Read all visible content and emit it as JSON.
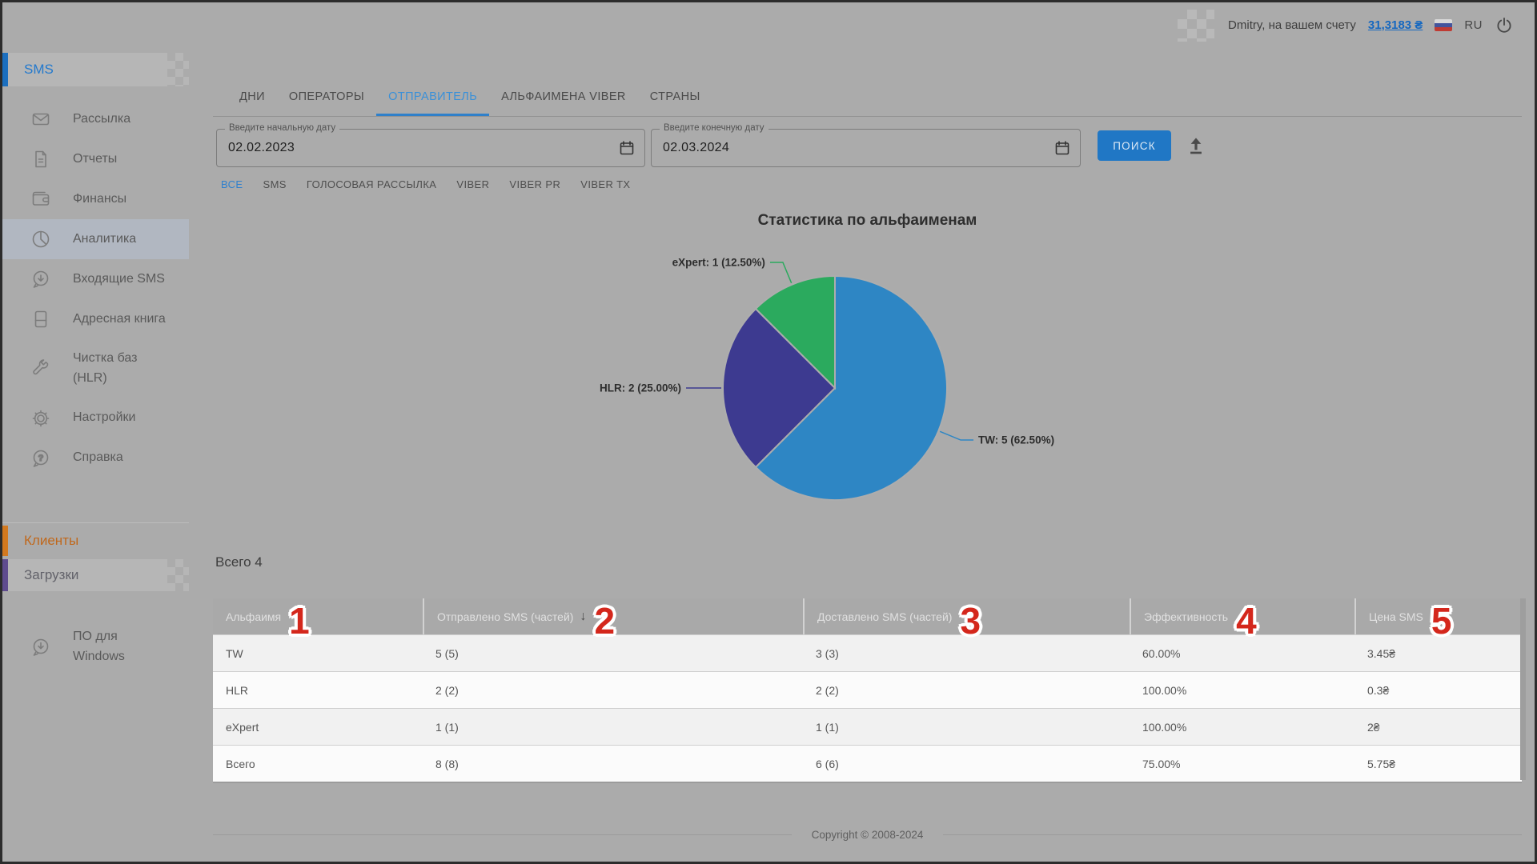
{
  "topbar": {
    "user_text": "Dmitry, на вашем счету",
    "balance": "31,3183 ₴",
    "language": "RU"
  },
  "sidebar": {
    "sms_section": "SMS",
    "items": [
      {
        "icon": "mail-icon",
        "label": "Рассылка"
      },
      {
        "icon": "report-icon",
        "label": "Отчеты"
      },
      {
        "icon": "wallet-icon",
        "label": "Финансы"
      },
      {
        "icon": "analytics-icon",
        "label": "Аналитика",
        "selected": true
      },
      {
        "icon": "inbox-sms-icon",
        "label": "Входящие SMS"
      },
      {
        "icon": "address-book-icon",
        "label": "Адресная книга"
      },
      {
        "icon": "wrench-icon",
        "label": "Чистка баз (HLR)"
      },
      {
        "icon": "gear-icon",
        "label": "Настройки"
      },
      {
        "icon": "help-icon",
        "label": "Справка"
      }
    ],
    "clients_section": "Клиенты",
    "downloads_section": "Загрузки",
    "windows_item": {
      "icon": "download-icon",
      "label": "ПО для Windows"
    }
  },
  "tabs": {
    "items": [
      {
        "label": "ДНИ"
      },
      {
        "label": "ОПЕРАТОРЫ"
      },
      {
        "label": "ОТПРАВИТЕЛЬ"
      },
      {
        "label": "АЛЬФАИМЕНА VIBER"
      },
      {
        "label": "СТРАНЫ"
      }
    ],
    "active_index": 2
  },
  "filters": {
    "start_date": {
      "label": "Введите начальную дату",
      "value": "02.02.2023"
    },
    "end_date": {
      "label": "Введите конечную дату",
      "value": "02.03.2024"
    },
    "search_button": "ПОИСК"
  },
  "type_filters": {
    "items": [
      "ВСЕ",
      "SMS",
      "ГОЛОСОВАЯ РАССЫЛКА",
      "VIBER",
      "VIBER PR",
      "VIBER TX"
    ],
    "active_index": 0
  },
  "chart_data": {
    "type": "pie",
    "title": "Статистика по альфаименам",
    "series": [
      {
        "name": "TW",
        "value": 5,
        "percent": "62.50%",
        "color": "#2e86c4"
      },
      {
        "name": "HLR",
        "value": 2,
        "percent": "25.00%",
        "color": "#3d3a90"
      },
      {
        "name": "eXpert",
        "value": 1,
        "percent": "12.50%",
        "color": "#2baa5e"
      }
    ],
    "label_format": "{name}: {value} ({percent})",
    "start_angle_deg": 0,
    "direction": "clockwise",
    "legend": "off"
  },
  "table": {
    "summary": "Всего 4",
    "columns": [
      {
        "label": "Альфаимя",
        "marker": "1"
      },
      {
        "label": "Отправлено SMS (частей)",
        "marker": "2",
        "sorted": "desc"
      },
      {
        "label": "Доставлено SMS (частей)",
        "marker": "3"
      },
      {
        "label": "Эффективность",
        "marker": "4"
      },
      {
        "label": "Цена SMS",
        "marker": "5"
      }
    ],
    "rows": [
      [
        "TW",
        "5 (5)",
        "3 (3)",
        "60.00%",
        "3.45₴"
      ],
      [
        "HLR",
        "2 (2)",
        "2 (2)",
        "100.00%",
        "0.3₴"
      ],
      [
        "eXpert",
        "1 (1)",
        "1 (1)",
        "100.00%",
        "2₴"
      ],
      [
        "Всего",
        "8 (8)",
        "6 (6)",
        "75.00%",
        "5.75₴"
      ]
    ]
  },
  "footer": {
    "copyright": "Copyright © 2008-2024"
  }
}
